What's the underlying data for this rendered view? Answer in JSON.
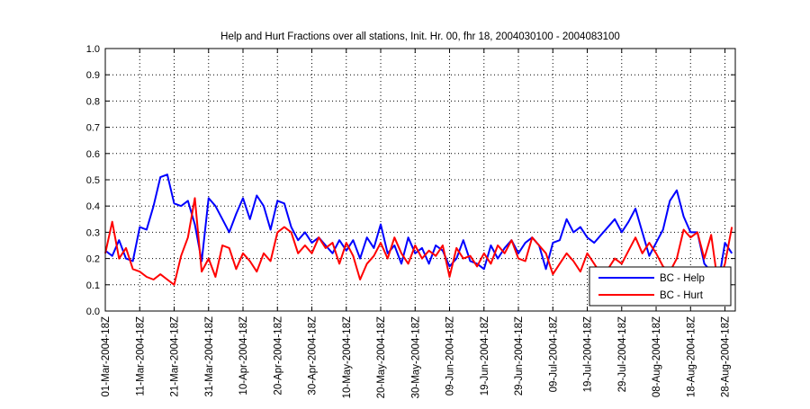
{
  "chart_data": {
    "type": "line",
    "title": "Help and Hurt Fractions over all stations, Init. Hr. 00, fhr 18, 2004030100 - 2004083100",
    "xlabel": "",
    "ylabel": "",
    "ylim": [
      0,
      1
    ],
    "yticks": [
      "0.0",
      "0.1",
      "0.2",
      "0.3",
      "0.4",
      "0.5",
      "0.6",
      "0.7",
      "0.8",
      "0.9",
      "1.0"
    ],
    "xlim_days": [
      0,
      183
    ],
    "xtick_days": [
      0,
      10,
      20,
      30,
      40,
      50,
      60,
      70,
      80,
      90,
      100,
      110,
      120,
      130,
      140,
      150,
      160,
      170,
      180
    ],
    "xtick_labels": [
      "01-Mar-2004-18Z",
      "11-Mar-2004-18Z",
      "21-Mar-2004-18Z",
      "31-Mar-2004-18Z",
      "10-Apr-2004-18Z",
      "20-Apr-2004-18Z",
      "30-Apr-2004-18Z",
      "10-May-2004-18Z",
      "20-May-2004-18Z",
      "30-May-2004-18Z",
      "09-Jun-2004-18Z",
      "19-Jun-2004-18Z",
      "29-Jun-2004-18Z",
      "09-Jul-2004-18Z",
      "19-Jul-2004-18Z",
      "29-Jul-2004-18Z",
      "08-Aug-2004-18Z",
      "18-Aug-2004-18Z",
      "28-Aug-2004-18Z"
    ],
    "grid": true,
    "legend_position": "bottom-right",
    "x_start_day": 0,
    "x_step_days": 2,
    "series": [
      {
        "name": "BC - Help",
        "color": "#0000ff",
        "values": [
          0.23,
          0.21,
          0.27,
          0.2,
          0.19,
          0.32,
          0.31,
          0.4,
          0.51,
          0.52,
          0.41,
          0.4,
          0.42,
          0.33,
          0.19,
          0.43,
          0.4,
          0.35,
          0.3,
          0.37,
          0.43,
          0.35,
          0.44,
          0.4,
          0.31,
          0.42,
          0.41,
          0.32,
          0.27,
          0.3,
          0.26,
          0.28,
          0.25,
          0.22,
          0.27,
          0.23,
          0.27,
          0.2,
          0.28,
          0.24,
          0.33,
          0.22,
          0.25,
          0.18,
          0.28,
          0.22,
          0.24,
          0.18,
          0.25,
          0.23,
          0.17,
          0.2,
          0.27,
          0.19,
          0.18,
          0.16,
          0.25,
          0.2,
          0.24,
          0.27,
          0.22,
          0.26,
          0.28,
          0.25,
          0.16,
          0.26,
          0.27,
          0.35,
          0.3,
          0.32,
          0.28,
          0.26,
          0.29,
          0.32,
          0.35,
          0.3,
          0.34,
          0.39,
          0.3,
          0.21,
          0.26,
          0.31,
          0.42,
          0.46,
          0.36,
          0.3,
          0.3,
          0.18,
          0.15,
          0.1,
          0.26,
          0.22
        ]
      },
      {
        "name": "BC - Hurt",
        "color": "#ff0000",
        "values": [
          0.22,
          0.34,
          0.2,
          0.24,
          0.16,
          0.15,
          0.13,
          0.12,
          0.14,
          0.12,
          0.1,
          0.21,
          0.28,
          0.43,
          0.15,
          0.2,
          0.13,
          0.25,
          0.24,
          0.16,
          0.22,
          0.19,
          0.15,
          0.22,
          0.19,
          0.3,
          0.32,
          0.3,
          0.22,
          0.25,
          0.22,
          0.28,
          0.24,
          0.26,
          0.18,
          0.26,
          0.21,
          0.12,
          0.18,
          0.21,
          0.26,
          0.2,
          0.28,
          0.22,
          0.18,
          0.25,
          0.2,
          0.23,
          0.21,
          0.25,
          0.13,
          0.24,
          0.2,
          0.21,
          0.17,
          0.22,
          0.18,
          0.25,
          0.22,
          0.27,
          0.2,
          0.19,
          0.28,
          0.25,
          0.22,
          0.14,
          0.18,
          0.22,
          0.19,
          0.15,
          0.22,
          0.18,
          0.14,
          0.16,
          0.2,
          0.18,
          0.23,
          0.28,
          0.22,
          0.26,
          0.22,
          0.17,
          0.15,
          0.2,
          0.31,
          0.28,
          0.3,
          0.2,
          0.29,
          0.1,
          0.18,
          0.32
        ]
      }
    ]
  }
}
